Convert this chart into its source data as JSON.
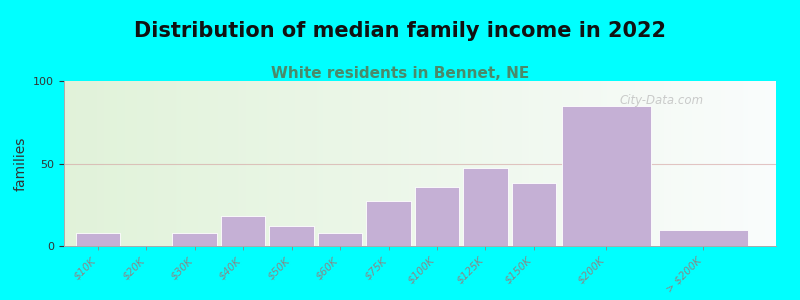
{
  "title": "Distribution of median family income in 2022",
  "subtitle": "White residents in Bennet, NE",
  "ylabel": "families",
  "background_color": "#00FFFF",
  "bar_color": "#c5b0d5",
  "bar_edge_color": "#b39ddb",
  "categories": [
    "$10K",
    "$20K",
    "$30K",
    "$40K",
    "$50K",
    "$60K",
    "$75K",
    "$100K",
    "$125K",
    "$150K",
    "$200K",
    "> $200K"
  ],
  "values": [
    8,
    0,
    8,
    18,
    12,
    8,
    27,
    36,
    47,
    38,
    85,
    10
  ],
  "ylim": [
    0,
    100
  ],
  "yticks": [
    0,
    50,
    100
  ],
  "title_fontsize": 15,
  "subtitle_fontsize": 11,
  "subtitle_color": "#4a8a6a",
  "ylabel_fontsize": 10,
  "watermark": "City-Data.com",
  "grid_color": "#d4a0a0",
  "grid_alpha": 0.6,
  "bar_widths": [
    1,
    1,
    1,
    1,
    1,
    1,
    1,
    1,
    1,
    1,
    2,
    2
  ],
  "bar_positions": [
    1,
    2,
    3,
    4,
    5,
    6,
    7,
    8,
    9,
    10,
    11.5,
    13.5
  ]
}
